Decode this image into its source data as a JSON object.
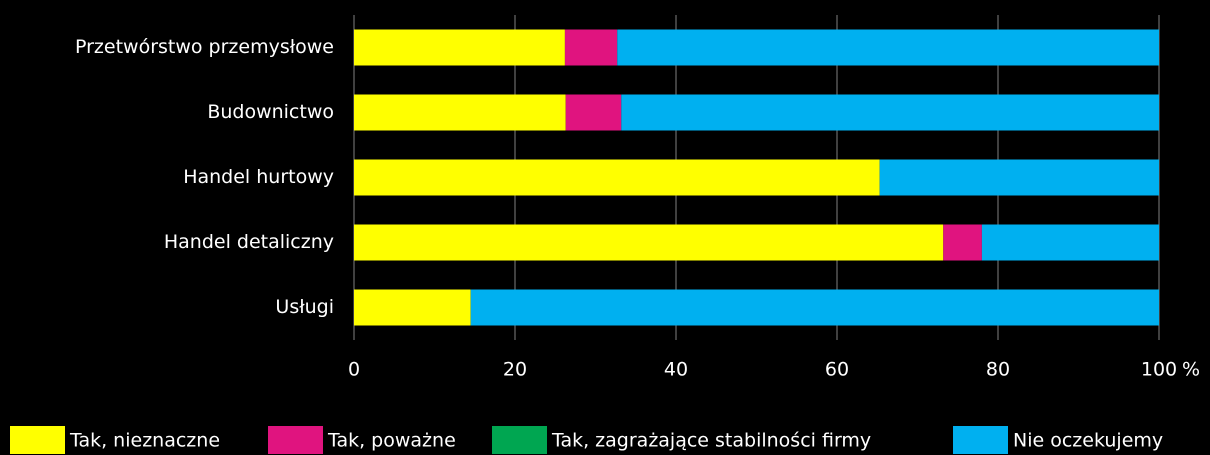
{
  "chart_data": {
    "type": "stacked_bar_horizontal",
    "categories": [
      "Przetwórstwo przemysłowe",
      "Budownictwo",
      "Handel hurtowy",
      "Handel detaliczny",
      "Usługi"
    ],
    "series": [
      {
        "name": "Tak, nieznaczne",
        "color": "#ffff00",
        "values": [
          26.2,
          26.3,
          65.3,
          73.2,
          14.5
        ]
      },
      {
        "name": "Tak, poważne",
        "color": "#e0147f",
        "values": [
          6.5,
          6.9,
          0,
          4.8,
          0
        ]
      },
      {
        "name": "Tak, zagrażające stabilności firmy",
        "color": "#00a651",
        "values": [
          0,
          0,
          0,
          0,
          0
        ]
      },
      {
        "name": "Nie oczekujemy",
        "color": "#00b0f0",
        "values": [
          67.3,
          66.8,
          34.7,
          22.0,
          85.5
        ]
      }
    ],
    "xlim": [
      0,
      100
    ],
    "xticks": [
      0,
      20,
      40,
      60,
      80,
      100
    ],
    "xlabel": "%",
    "grid": true,
    "legend": "bottom"
  }
}
